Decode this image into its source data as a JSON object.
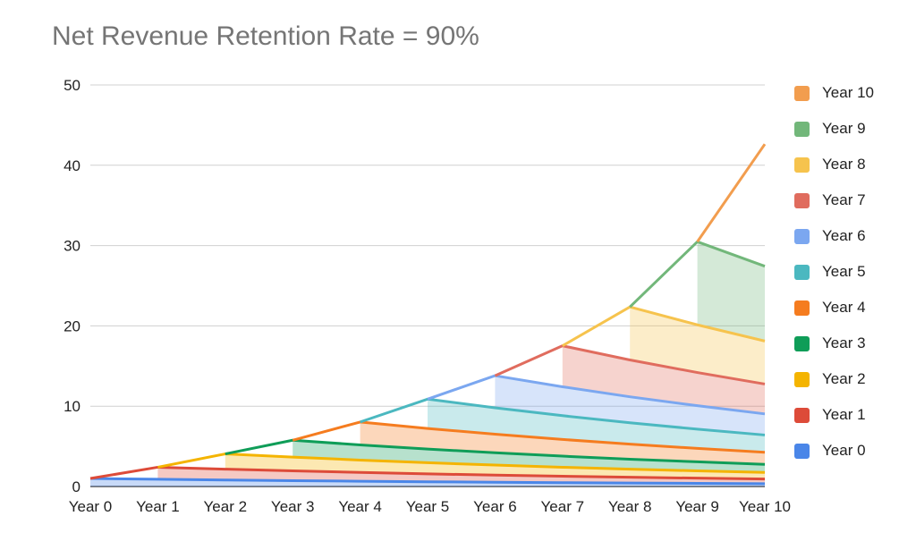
{
  "chart_data": {
    "type": "area",
    "stacked": true,
    "title": "Net Revenue Retention Rate = 90%",
    "xlabel": "",
    "ylabel": "",
    "ylim": [
      0,
      50
    ],
    "yticks": [
      0,
      10,
      20,
      30,
      40,
      50
    ],
    "grid": true,
    "legend_position": "right",
    "categories": [
      "Year 0",
      "Year 1",
      "Year 2",
      "Year 3",
      "Year 4",
      "Year 5",
      "Year 6",
      "Year 7",
      "Year 8",
      "Year 9",
      "Year 10"
    ],
    "series": [
      {
        "name": "Year 0",
        "color": "#4a86e8",
        "values": [
          1.0,
          0.9,
          0.81,
          0.73,
          0.66,
          0.59,
          0.53,
          0.48,
          0.43,
          0.39,
          0.35
        ]
      },
      {
        "name": "Year 1",
        "color": "#dd4b39",
        "values": [
          0,
          1.5,
          1.35,
          1.22,
          1.09,
          0.98,
          0.89,
          0.8,
          0.72,
          0.65,
          0.58
        ]
      },
      {
        "name": "Year 2",
        "color": "#f4b400",
        "values": [
          0,
          0,
          1.9,
          1.71,
          1.54,
          1.39,
          1.25,
          1.12,
          1.01,
          0.91,
          0.82
        ]
      },
      {
        "name": "Year 3",
        "color": "#0f9d58",
        "values": [
          0,
          0,
          0,
          2.1,
          1.89,
          1.7,
          1.53,
          1.38,
          1.24,
          1.12,
          1.0
        ]
      },
      {
        "name": "Year 4",
        "color": "#f57c1f",
        "values": [
          0,
          0,
          0,
          0,
          2.85,
          2.57,
          2.31,
          2.08,
          1.87,
          1.68,
          1.51
        ]
      },
      {
        "name": "Year 5",
        "color": "#4bb8c0",
        "values": [
          0,
          0,
          0,
          0,
          0,
          3.65,
          3.29,
          2.96,
          2.66,
          2.39,
          2.15
        ]
      },
      {
        "name": "Year 6",
        "color": "#7ba7f0",
        "values": [
          0,
          0,
          0,
          0,
          0,
          0,
          4.0,
          3.6,
          3.24,
          2.92,
          2.63
        ]
      },
      {
        "name": "Year 7",
        "color": "#e06c5e",
        "values": [
          0,
          0,
          0,
          0,
          0,
          0,
          0,
          5.1,
          4.59,
          4.13,
          3.72
        ]
      },
      {
        "name": "Year 8",
        "color": "#f6c34d",
        "values": [
          0,
          0,
          0,
          0,
          0,
          0,
          0,
          0,
          6.6,
          5.94,
          5.35
        ]
      },
      {
        "name": "Year 9",
        "color": "#72b77a",
        "values": [
          0,
          0,
          0,
          0,
          0,
          0,
          0,
          0,
          0,
          10.35,
          9.32
        ]
      },
      {
        "name": "Year 10",
        "color": "#f29d4e",
        "values": [
          0,
          0,
          0,
          0,
          0,
          0,
          0,
          0,
          0,
          0,
          15.2
        ]
      }
    ]
  }
}
